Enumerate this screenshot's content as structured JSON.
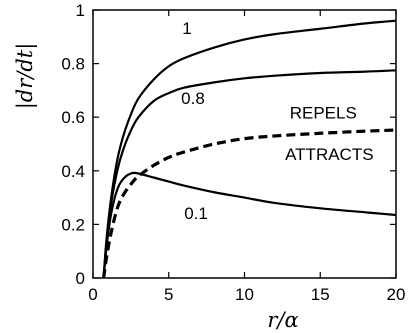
{
  "chart_data": {
    "type": "line",
    "xlabel": "r/α",
    "ylabel": "|dr/dt|",
    "xlim": [
      0,
      20
    ],
    "ylim": [
      0,
      1
    ],
    "xticks": [
      0,
      5,
      10,
      15,
      20
    ],
    "yticks": [
      0,
      0.2,
      0.4,
      0.6,
      0.8,
      1
    ],
    "xtick_labels": [
      "0",
      "5",
      "10",
      "15",
      "20"
    ],
    "ytick_labels": [
      "0",
      "0.2",
      "0.4",
      "0.6",
      "0.8",
      "1"
    ],
    "grid": false,
    "series": [
      {
        "name": "1",
        "style": "solid",
        "x": [
          0.7,
          0.9,
          1.2,
          1.6,
          2,
          2.5,
          3,
          4,
          5,
          6,
          8,
          10,
          12,
          15,
          18,
          20
        ],
        "y": [
          0,
          0.15,
          0.3,
          0.44,
          0.53,
          0.61,
          0.67,
          0.74,
          0.79,
          0.82,
          0.86,
          0.89,
          0.91,
          0.93,
          0.95,
          0.96
        ]
      },
      {
        "name": "0.8",
        "style": "solid",
        "x": [
          0.7,
          0.9,
          1.2,
          1.6,
          2,
          2.5,
          3,
          4,
          5,
          6,
          8,
          10,
          12,
          15,
          18,
          20
        ],
        "y": [
          0,
          0.14,
          0.28,
          0.4,
          0.48,
          0.55,
          0.6,
          0.66,
          0.69,
          0.71,
          0.73,
          0.745,
          0.755,
          0.765,
          0.77,
          0.775
        ]
      },
      {
        "name": "0.1",
        "style": "solid",
        "x": [
          0.7,
          0.9,
          1.2,
          1.6,
          2,
          2.5,
          3,
          4,
          5,
          6,
          8,
          10,
          12,
          15,
          18,
          20
        ],
        "y": [
          0,
          0.12,
          0.24,
          0.33,
          0.37,
          0.39,
          0.39,
          0.375,
          0.36,
          0.345,
          0.32,
          0.3,
          0.28,
          0.26,
          0.245,
          0.235
        ]
      },
      {
        "name": "",
        "style": "dashed",
        "x": [
          0.7,
          0.9,
          1.2,
          1.6,
          2,
          2.5,
          3,
          4,
          5,
          6,
          8,
          10,
          12,
          15,
          18,
          20
        ],
        "y": [
          0,
          0.08,
          0.17,
          0.26,
          0.31,
          0.35,
          0.38,
          0.42,
          0.45,
          0.47,
          0.5,
          0.52,
          0.53,
          0.54,
          0.548,
          0.552
        ]
      }
    ],
    "annotations": [
      {
        "text": "1",
        "x": 6.2,
        "y": 0.91
      },
      {
        "text": "0.8",
        "x": 6.6,
        "y": 0.65
      },
      {
        "text": "REPELS",
        "x": 15.2,
        "y": 0.595
      },
      {
        "text": "ATTRACTS",
        "x": 15.6,
        "y": 0.44
      },
      {
        "text": "0.1",
        "x": 6.8,
        "y": 0.22
      }
    ]
  }
}
